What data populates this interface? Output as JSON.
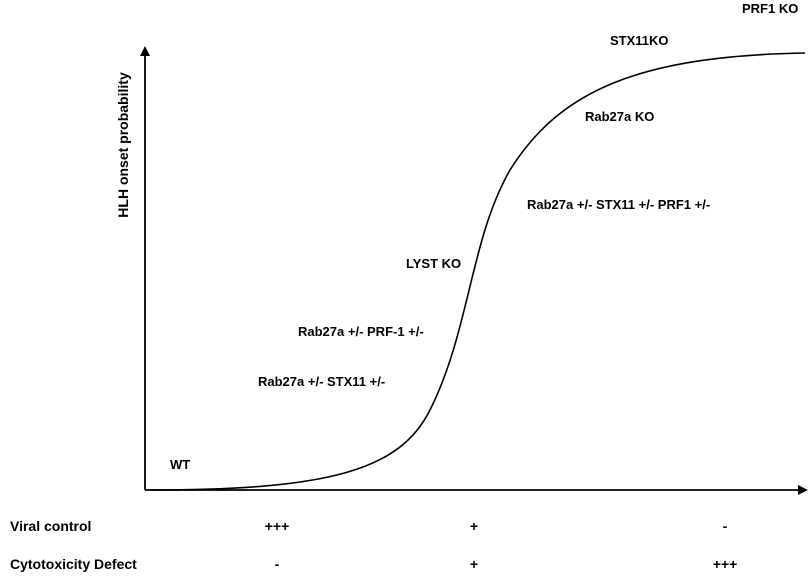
{
  "y_axis_label": "HLH onset probability",
  "curve_labels": [
    {
      "id": "wt",
      "text": "WT"
    },
    {
      "id": "rab27a-stx11-het",
      "text": "Rab27a +/- STX11 +/-"
    },
    {
      "id": "rab27a-prf1-het",
      "text": "Rab27a +/- PRF-1 +/-"
    },
    {
      "id": "lyst-ko",
      "text": "LYST KO"
    },
    {
      "id": "triple-het",
      "text": "Rab27a +/- STX11 +/- PRF1 +/-"
    },
    {
      "id": "rab27a-ko",
      "text": "Rab27a KO"
    },
    {
      "id": "stx11-ko",
      "text": "STX11KO"
    },
    {
      "id": "prf1-ko",
      "text": "PRF1 KO"
    }
  ],
  "rows": [
    {
      "title": "Viral control",
      "values": [
        "+++",
        "+",
        "-"
      ]
    },
    {
      "title": "Cytotoxicity Defect",
      "values": [
        "-",
        "+",
        "+++"
      ]
    }
  ]
}
